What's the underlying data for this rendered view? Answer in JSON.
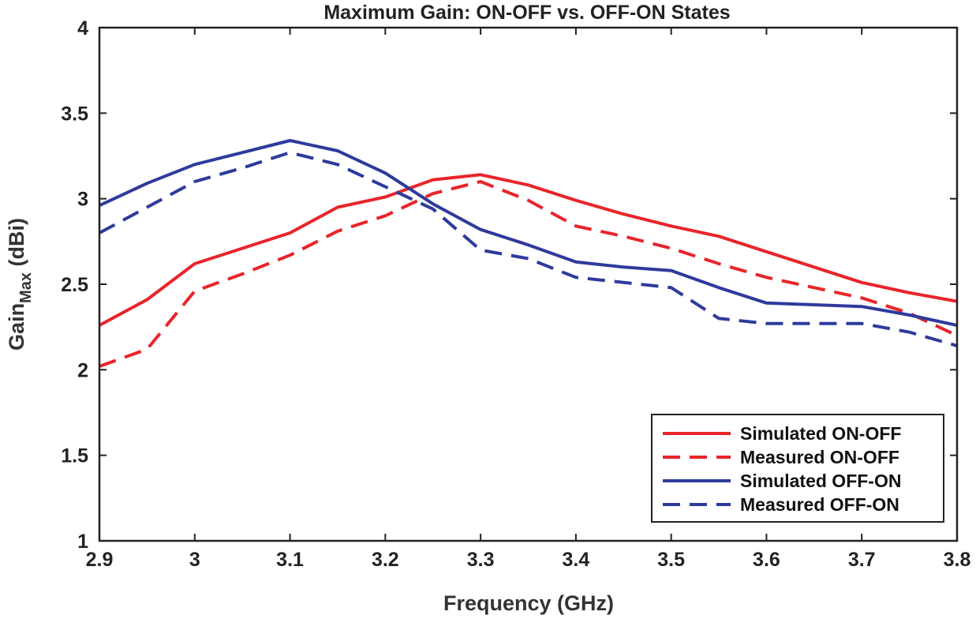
{
  "chart_data": {
    "type": "line",
    "title": "Maximum Gain: ON-OFF vs. OFF-ON States",
    "xlabel": "Frequency (GHz)",
    "ylabel": {
      "base": "Gain",
      "subscript": "Max",
      "unit": " (dBi)"
    },
    "xlim": [
      2.9,
      3.8
    ],
    "ylim": [
      1,
      4
    ],
    "xticks": [
      "2.9",
      "3",
      "3.1",
      "3.2",
      "3.3",
      "3.4",
      "3.5",
      "3.6",
      "3.7",
      "3.8"
    ],
    "yticks": [
      "1",
      "1.5",
      "2",
      "2.5",
      "3",
      "3.5",
      "4"
    ],
    "grid": false,
    "legend_position": "bottom-right",
    "x": [
      2.9,
      2.95,
      3.0,
      3.05,
      3.1,
      3.15,
      3.2,
      3.25,
      3.3,
      3.35,
      3.4,
      3.45,
      3.5,
      3.55,
      3.6,
      3.65,
      3.7,
      3.75,
      3.8
    ],
    "series": [
      {
        "name": "Simulated ON-OFF",
        "color": "#e8252b",
        "dash": "solid",
        "values": [
          2.26,
          2.41,
          2.62,
          2.71,
          2.8,
          2.95,
          3.01,
          3.11,
          3.14,
          3.08,
          2.99,
          2.91,
          2.84,
          2.78,
          2.69,
          2.6,
          2.51,
          2.45,
          2.4
        ]
      },
      {
        "name": "Measured ON-OFF",
        "color": "#e8252b",
        "dash": "dashed",
        "values": [
          2.02,
          2.12,
          2.46,
          2.56,
          2.67,
          2.81,
          2.9,
          3.03,
          3.1,
          2.99,
          2.84,
          2.78,
          2.71,
          2.62,
          2.54,
          2.48,
          2.42,
          2.33,
          2.2
        ]
      },
      {
        "name": "Simulated OFF-ON",
        "color": "#2e3a9c",
        "dash": "solid",
        "values": [
          2.96,
          3.09,
          3.2,
          3.27,
          3.34,
          3.28,
          3.15,
          2.97,
          2.82,
          2.73,
          2.63,
          2.6,
          2.58,
          2.48,
          2.39,
          2.38,
          2.37,
          2.32,
          2.26
        ]
      },
      {
        "name": "Measured OFF-ON",
        "color": "#2e3a9c",
        "dash": "dashed",
        "values": [
          2.8,
          2.95,
          3.1,
          3.18,
          3.27,
          3.2,
          3.07,
          2.94,
          2.7,
          2.65,
          2.54,
          2.51,
          2.48,
          2.3,
          2.27,
          2.27,
          2.27,
          2.22,
          2.14
        ]
      }
    ]
  }
}
